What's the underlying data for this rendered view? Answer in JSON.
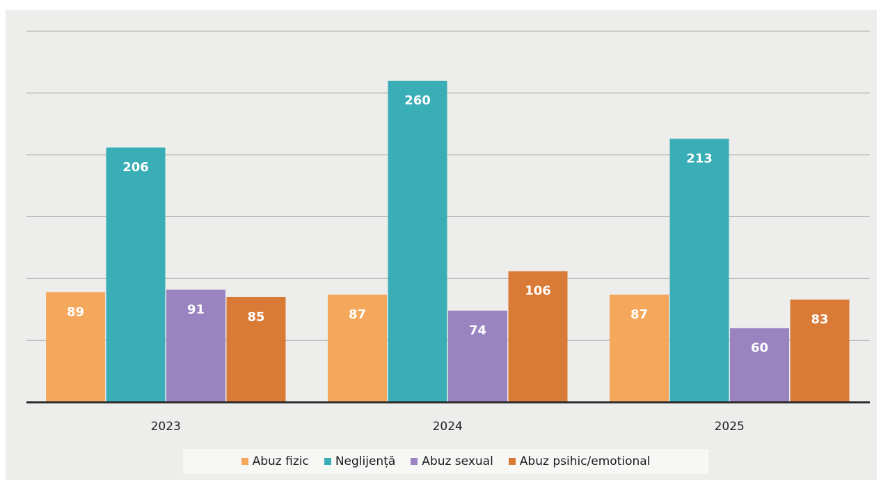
{
  "chart_data": {
    "type": "bar",
    "categories": [
      "2023",
      "2024",
      "2025"
    ],
    "series": [
      {
        "name": "Abuz fizic",
        "values": [
          89,
          87,
          87
        ],
        "color": "#f5a85c"
      },
      {
        "name": "Neglijență",
        "values": [
          206,
          260,
          213
        ],
        "color": "#3aaeb6"
      },
      {
        "name": "Abuz sexual",
        "values": [
          91,
          74,
          60
        ],
        "color": "#9a84c0"
      },
      {
        "name": "Abuz psihic/emotional",
        "values": [
          85,
          106,
          83
        ],
        "color": "#d97a36"
      }
    ],
    "ylim": [
      0,
      300
    ],
    "grid": true,
    "legend": "bottom",
    "data_labels": true
  }
}
